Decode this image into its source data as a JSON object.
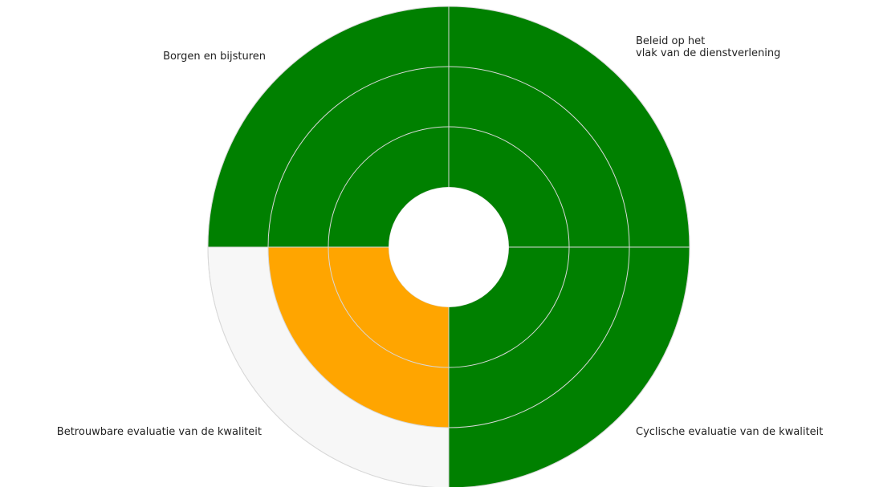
{
  "chart_data": {
    "type": "polar-bar",
    "categories": [
      "Beleid op het\nvlak van de dienstverlening",
      "Cyclische evaluatie van de kwaliteit",
      "Betrouwbare evaluatie van de kwaliteit",
      "Borgen en bijsturen"
    ],
    "values": [
      3,
      3,
      2,
      3
    ],
    "colors": [
      "#008000",
      "#008000",
      "#ffa500",
      "#008000"
    ],
    "background_color": "#f7f7f7",
    "rlim": [
      0,
      3
    ],
    "rticks": [
      1,
      2,
      3
    ],
    "grid": true
  }
}
